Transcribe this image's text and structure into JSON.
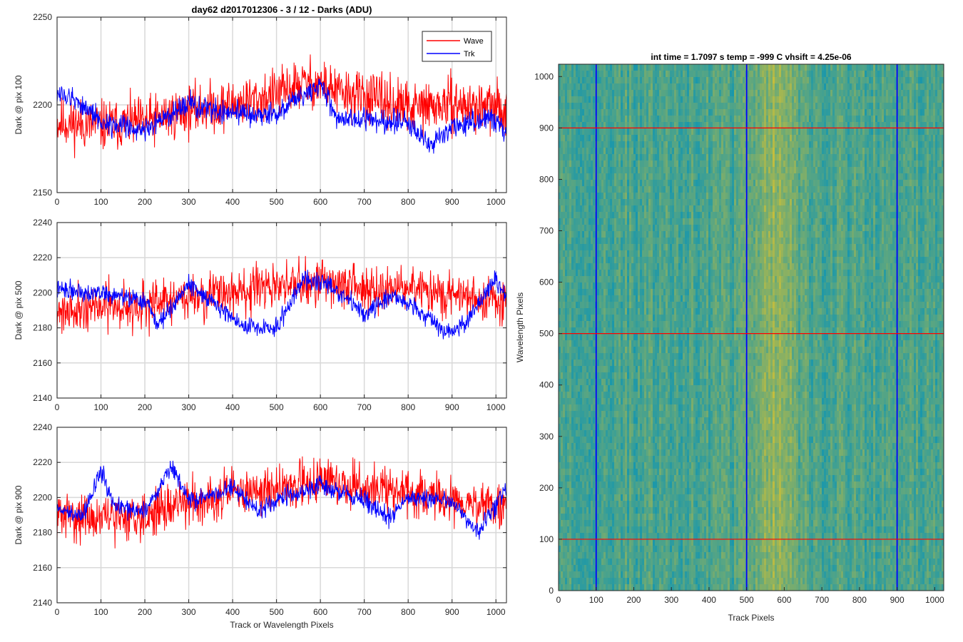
{
  "figure": {
    "title": "day62 d2017012306 - 3 / 12 - Darks (ADU)"
  },
  "colors": {
    "wave": "#ff0000",
    "trk": "#0000ff",
    "grid": "#d9d9d9",
    "axis": "#262626"
  },
  "chart_data": [
    {
      "type": "line",
      "ylabel": "Dark @ pix 100",
      "xlabel": "",
      "xlim": [
        0,
        1024
      ],
      "ylim": [
        2150,
        2250
      ],
      "xticks": [
        0,
        100,
        200,
        300,
        400,
        500,
        600,
        700,
        800,
        900,
        1000
      ],
      "yticks": [
        2150,
        2200,
        2250
      ],
      "grid": true,
      "legend": {
        "position": "top-right",
        "entries": [
          "Wave",
          "Trk"
        ]
      },
      "series": [
        {
          "name": "Wave",
          "color": "#ff0000",
          "anchors": [
            [
              0,
              2190
            ],
            [
              100,
              2188
            ],
            [
              200,
              2190
            ],
            [
              300,
              2197
            ],
            [
              400,
              2200
            ],
            [
              500,
              2206
            ],
            [
              560,
              2212
            ],
            [
              600,
              2212
            ],
            [
              650,
              2206
            ],
            [
              700,
              2205
            ],
            [
              800,
              2198
            ],
            [
              900,
              2200
            ],
            [
              1000,
              2198
            ],
            [
              1024,
              2196
            ]
          ],
          "noise": 11,
          "seed": 11
        },
        {
          "name": "Trk",
          "color": "#0000ff",
          "anchors": [
            [
              0,
              2207
            ],
            [
              60,
              2200
            ],
            [
              100,
              2190
            ],
            [
              200,
              2186
            ],
            [
              300,
              2200
            ],
            [
              400,
              2195
            ],
            [
              500,
              2195
            ],
            [
              600,
              2212
            ],
            [
              640,
              2192
            ],
            [
              700,
              2192
            ],
            [
              800,
              2190
            ],
            [
              850,
              2176
            ],
            [
              900,
              2188
            ],
            [
              1000,
              2192
            ],
            [
              1024,
              2184
            ]
          ],
          "noise": 5,
          "seed": 12
        }
      ]
    },
    {
      "type": "line",
      "ylabel": "Dark @ pix 500",
      "xlabel": "",
      "xlim": [
        0,
        1024
      ],
      "ylim": [
        2140,
        2240
      ],
      "xticks": [
        0,
        100,
        200,
        300,
        400,
        500,
        600,
        700,
        800,
        900,
        1000
      ],
      "yticks": [
        2140,
        2160,
        2180,
        2200,
        2220,
        2240
      ],
      "grid": true,
      "series": [
        {
          "name": "Wave",
          "color": "#ff0000",
          "anchors": [
            [
              0,
              2190
            ],
            [
              100,
              2192
            ],
            [
              200,
              2192
            ],
            [
              300,
              2198
            ],
            [
              400,
              2200
            ],
            [
              500,
              2203
            ],
            [
              600,
              2207
            ],
            [
              700,
              2202
            ],
            [
              800,
              2202
            ],
            [
              900,
              2198
            ],
            [
              1000,
              2195
            ],
            [
              1024,
              2195
            ]
          ],
          "noise": 10,
          "seed": 21
        },
        {
          "name": "Trk",
          "color": "#0000ff",
          "anchors": [
            [
              0,
              2202
            ],
            [
              100,
              2200
            ],
            [
              200,
              2195
            ],
            [
              230,
              2182
            ],
            [
              300,
              2205
            ],
            [
              380,
              2190
            ],
            [
              430,
              2180
            ],
            [
              500,
              2180
            ],
            [
              560,
              2208
            ],
            [
              620,
              2205
            ],
            [
              700,
              2188
            ],
            [
              760,
              2198
            ],
            [
              800,
              2195
            ],
            [
              880,
              2178
            ],
            [
              920,
              2180
            ],
            [
              1000,
              2208
            ],
            [
              1024,
              2196
            ]
          ],
          "noise": 4,
          "seed": 22
        }
      ]
    },
    {
      "type": "line",
      "ylabel": "Dark @ pix 900",
      "xlabel": "Track or Wavelength Pixels",
      "xlim": [
        0,
        1024
      ],
      "ylim": [
        2140,
        2240
      ],
      "xticks": [
        0,
        100,
        200,
        300,
        400,
        500,
        600,
        700,
        800,
        900,
        1000
      ],
      "yticks": [
        2140,
        2160,
        2180,
        2200,
        2220,
        2240
      ],
      "grid": true,
      "series": [
        {
          "name": "Wave",
          "color": "#ff0000",
          "anchors": [
            [
              0,
              2190
            ],
            [
              100,
              2188
            ],
            [
              200,
              2190
            ],
            [
              300,
              2198
            ],
            [
              400,
              2202
            ],
            [
              500,
              2205
            ],
            [
              600,
              2210
            ],
            [
              700,
              2205
            ],
            [
              800,
              2203
            ],
            [
              900,
              2198
            ],
            [
              1000,
              2195
            ],
            [
              1024,
              2194
            ]
          ],
          "noise": 10,
          "seed": 31
        },
        {
          "name": "Trk",
          "color": "#0000ff",
          "anchors": [
            [
              0,
              2193
            ],
            [
              60,
              2190
            ],
            [
              100,
              2215
            ],
            [
              130,
              2195
            ],
            [
              200,
              2192
            ],
            [
              260,
              2218
            ],
            [
              300,
              2198
            ],
            [
              400,
              2205
            ],
            [
              460,
              2192
            ],
            [
              500,
              2198
            ],
            [
              600,
              2207
            ],
            [
              700,
              2198
            ],
            [
              760,
              2188
            ],
            [
              800,
              2200
            ],
            [
              900,
              2198
            ],
            [
              960,
              2180
            ],
            [
              1024,
              2205
            ]
          ],
          "noise": 4,
          "seed": 32
        }
      ]
    },
    {
      "type": "heatmap",
      "title": "int time = 1.7097 s    temp = -999 C    vhsift = 4.25e-06",
      "xlabel": "Track Pixels",
      "ylabel": "Wavelength Pixels",
      "xlim": [
        0,
        1024
      ],
      "ylim": [
        0,
        1024
      ],
      "xticks": [
        0,
        100,
        200,
        300,
        400,
        500,
        600,
        700,
        800,
        900,
        1000
      ],
      "yticks": [
        0,
        100,
        200,
        300,
        400,
        500,
        600,
        700,
        800,
        900,
        1000
      ],
      "colormap": "parula",
      "bright_band_center": 580,
      "vertical_markers": [
        100,
        500,
        900
      ],
      "vertical_marker_color": "#0000ff",
      "horizontal_markers": [
        100,
        500,
        900
      ],
      "horizontal_marker_color": "#ff0000"
    }
  ]
}
